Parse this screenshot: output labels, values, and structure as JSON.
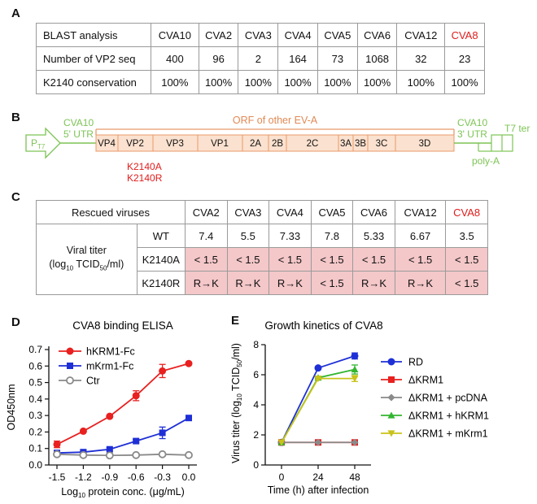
{
  "panelA": {
    "letter": "A",
    "header": [
      "BLAST analysis",
      "CVA10",
      "CVA2",
      "CVA3",
      "CVA4",
      "CVA5",
      "CVA6",
      "CVA12",
      "CVA8"
    ],
    "rows": [
      {
        "label": "Number of VP2 seq",
        "values": [
          "400",
          "96",
          "2",
          "164",
          "73",
          "1068",
          "32",
          "23"
        ]
      },
      {
        "label": "K2140 conservation",
        "values": [
          "100%",
          "100%",
          "100%",
          "100%",
          "100%",
          "100%",
          "100%",
          "100%"
        ]
      }
    ],
    "highlight_color": "#e01c1c"
  },
  "panelB": {
    "letter": "B",
    "promoter": "P",
    "promoter_sub": "T7",
    "left_utr_line1": "CVA10",
    "left_utr_line2": "5' UTR",
    "orf_label": "ORF of other EV-A",
    "segments": [
      "VP4",
      "VP2",
      "VP3",
      "VP1",
      "2A",
      "2B",
      "2C",
      "3A",
      "3B",
      "3C",
      "3D"
    ],
    "right_utr_line1": "CVA10",
    "right_utr_line2": "3' UTR",
    "terminator": "T7 ter",
    "polya": "poly-A",
    "mutation1": "K2140A",
    "mutation2": "K2140R",
    "green": "#7dc455",
    "orange": "#e89a6a",
    "segment_fill": "#fbe1cf"
  },
  "panelC": {
    "letter": "C",
    "title": "Rescued viruses",
    "viruses": [
      "CVA2",
      "CVA3",
      "CVA4",
      "CVA5",
      "CVA6",
      "CVA12",
      "CVA8"
    ],
    "row_label_line1": "Viral titer",
    "row_label_line2a": "(log",
    "row_label_sub1": "10",
    "row_label_line2b": " TCID",
    "row_label_sub2": "50",
    "row_label_line2c": "/ml)",
    "rows": [
      {
        "name": "WT",
        "values": [
          "7.4",
          "5.5",
          "7.33",
          "7.8",
          "5.33",
          "6.67",
          "3.5"
        ]
      },
      {
        "name": "K2140A",
        "values": [
          "< 1.5",
          "< 1.5",
          "< 1.5",
          "< 1.5",
          "< 1.5",
          "< 1.5",
          "< 1.5"
        ]
      },
      {
        "name": "K2140R",
        "values": [
          "R→K",
          "R→K",
          "R→K",
          "< 1.5",
          "R→K",
          "R→K",
          "< 1.5"
        ]
      }
    ]
  },
  "panelD": {
    "letter": "D",
    "chart_data": {
      "type": "line",
      "title": "CVA8 binding ELISA",
      "xlabel": "Log10 protein conc. (μg/mL)",
      "xlabel_pre": "Log",
      "xlabel_sub": "10",
      "xlabel_post": " protein conc. (μg/mL)",
      "ylabel": "OD450nm",
      "x": [
        -1.5,
        -1.2,
        -0.9,
        -0.6,
        -0.3,
        0.0
      ],
      "xticks": [
        "-1.5",
        "-1.2",
        "-0.9",
        "-0.6",
        "-0.3",
        "0.0"
      ],
      "ylim": [
        0,
        0.7
      ],
      "yticks": [
        "0.0",
        "0.1",
        "0.2",
        "0.3",
        "0.4",
        "0.5",
        "0.6",
        "0.7"
      ],
      "legend_position": "top-left",
      "series": [
        {
          "name": "hKRM1-Fc",
          "color": "#e8201f",
          "marker": "circle",
          "values": [
            0.125,
            0.205,
            0.295,
            0.42,
            0.57,
            0.615
          ],
          "errors": [
            0.02,
            0.005,
            0.005,
            0.03,
            0.04,
            0.005
          ]
        },
        {
          "name": "mKrm1-Fc",
          "color": "#1e2fd6",
          "marker": "square",
          "values": [
            0.073,
            0.078,
            0.095,
            0.145,
            0.195,
            0.285
          ],
          "errors": [
            0.01,
            0.01,
            0.01,
            0.01,
            0.035,
            0.005
          ]
        },
        {
          "name": "Ctr",
          "color": "#8a8a8a",
          "marker": "open-circle",
          "values": [
            0.065,
            0.06,
            0.058,
            0.06,
            0.065,
            0.06
          ],
          "errors": [
            0.005,
            0.005,
            0.005,
            0.005,
            0.005,
            0.005
          ]
        }
      ]
    }
  },
  "panelE": {
    "letter": "E",
    "chart_data": {
      "type": "line",
      "title": "Growth kinetics of CVA8",
      "xlabel": "Time (h) after infection",
      "ylabel": "Virus titer (log10 TCID50/ml)",
      "ylabel_a": "Virus titer (log",
      "ylabel_sub1": "10",
      "ylabel_b": " TCID",
      "ylabel_sub2": "50",
      "ylabel_c": "/ml)",
      "x": [
        0,
        24,
        48
      ],
      "xticks": [
        "0",
        "24",
        "48"
      ],
      "ylim": [
        0,
        8
      ],
      "yticks": [
        "0",
        "2",
        "4",
        "6",
        "8"
      ],
      "legend_position": "right",
      "series": [
        {
          "name": "RD",
          "color": "#1e2fd6",
          "marker": "circle",
          "values": [
            1.5,
            6.45,
            7.25
          ],
          "errors": [
            0,
            0.05,
            0.2
          ]
        },
        {
          "name": "ΔKRM1",
          "color": "#e8201f",
          "marker": "square",
          "values": [
            1.5,
            1.5,
            1.5
          ],
          "errors": [
            0,
            0,
            0
          ]
        },
        {
          "name": "ΔKRM1 + pcDNA",
          "color": "#8a8a8a",
          "marker": "diamond",
          "values": [
            1.5,
            1.5,
            1.5
          ],
          "errors": [
            0,
            0,
            0
          ]
        },
        {
          "name": "ΔKRM1 + hKRM1",
          "color": "#33b530",
          "marker": "triangle-up",
          "values": [
            1.5,
            5.8,
            6.35
          ],
          "errors": [
            0,
            0.05,
            0.3
          ]
        },
        {
          "name": "ΔKRM1 + mKrm1",
          "color": "#c9c21a",
          "marker": "triangle-down",
          "values": [
            1.5,
            5.75,
            5.75
          ],
          "errors": [
            0,
            0.05,
            0.2
          ]
        }
      ]
    }
  }
}
